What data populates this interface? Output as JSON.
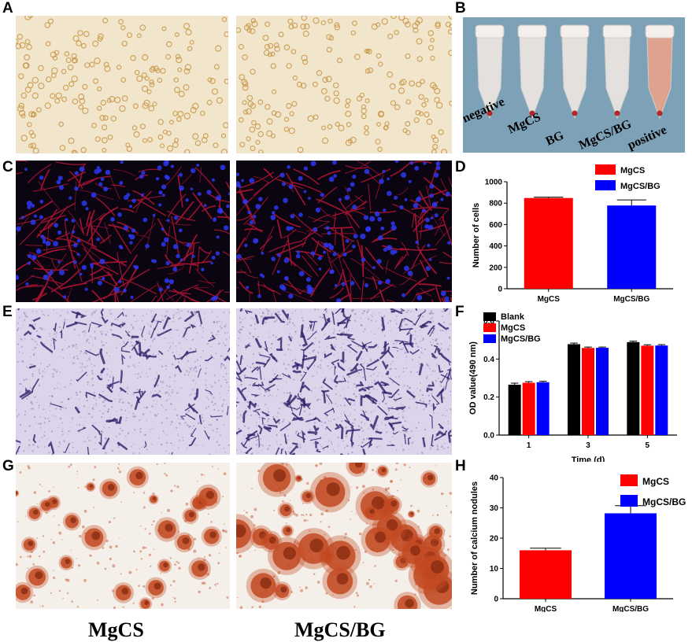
{
  "panel_labels": {
    "a": "A",
    "b": "B",
    "c": "C",
    "d": "D",
    "e": "E",
    "f": "F",
    "g": "G",
    "h": "H"
  },
  "captions": {
    "left": "MgCS",
    "right": "MgCS/BG"
  },
  "tubes": {
    "labels": [
      "negative",
      "MgCS",
      "BG",
      "MgCS/BG",
      "positive"
    ],
    "colors": {
      "background": "#7da2b8",
      "clear": "#ece6e2",
      "positive": "#e8a38c"
    }
  },
  "micrographs": {
    "rbc": {
      "background": "#f1e6cb",
      "cell": "#c9964a"
    },
    "fluor": {
      "background": "#0b0512",
      "actin": "#d2173a",
      "nuclei": "#2e37f2"
    },
    "crystal_violet": {
      "background": "#ddd4ec",
      "stain": "#2b1f68"
    },
    "alizarin": {
      "background": "#f4efe9",
      "nodule": "#c24a22",
      "core": "#8a2a12"
    }
  },
  "chart_data": [
    {
      "id": "D",
      "type": "bar",
      "categories": [
        "MgCS",
        "MgCS/BG"
      ],
      "values": [
        848,
        778
      ],
      "errors": [
        8,
        52
      ],
      "colors": [
        "#ff0000",
        "#0000ff"
      ],
      "legend": [
        "MgCS",
        "MgCS/BG"
      ],
      "legend_position": "top-right",
      "ylabel": "Number of cells",
      "xlabel": "",
      "ylim": [
        0,
        1000
      ],
      "yticks": [
        0,
        200,
        400,
        600,
        800,
        1000
      ]
    },
    {
      "id": "F",
      "type": "bar",
      "categories": [
        "1",
        "3",
        "5"
      ],
      "series": [
        {
          "name": "Blank",
          "values": [
            0.265,
            0.478,
            0.489
          ],
          "errors": [
            0.008,
            0.006,
            0.005
          ],
          "color": "#000000"
        },
        {
          "name": "MgCS",
          "values": [
            0.275,
            0.458,
            0.47
          ],
          "errors": [
            0.006,
            0.005,
            0.005
          ],
          "color": "#ff0000"
        },
        {
          "name": "MgCS/BG",
          "values": [
            0.278,
            0.459,
            0.471
          ],
          "errors": [
            0.005,
            0.004,
            0.005
          ],
          "color": "#0000ff"
        }
      ],
      "legend_position": "top-left",
      "ylabel": "OD value(490 nm)",
      "xlabel": "Time (d)",
      "ylim": [
        0,
        0.6
      ],
      "yticks": [
        "0.0",
        "0.2",
        "0.4",
        "0.6"
      ]
    },
    {
      "id": "H",
      "type": "bar",
      "categories": [
        "MgCS",
        "MgCS/BG"
      ],
      "values": [
        16,
        28.2
      ],
      "errors": [
        0.7,
        2.5
      ],
      "colors": [
        "#ff0000",
        "#0000ff"
      ],
      "legend": [
        "MgCS",
        "MgCS/BG"
      ],
      "legend_position": "top-right",
      "ylabel": "Number of calcium nodules",
      "xlabel": "",
      "ylim": [
        0,
        40
      ],
      "yticks": [
        0,
        10,
        20,
        30,
        40
      ]
    }
  ]
}
